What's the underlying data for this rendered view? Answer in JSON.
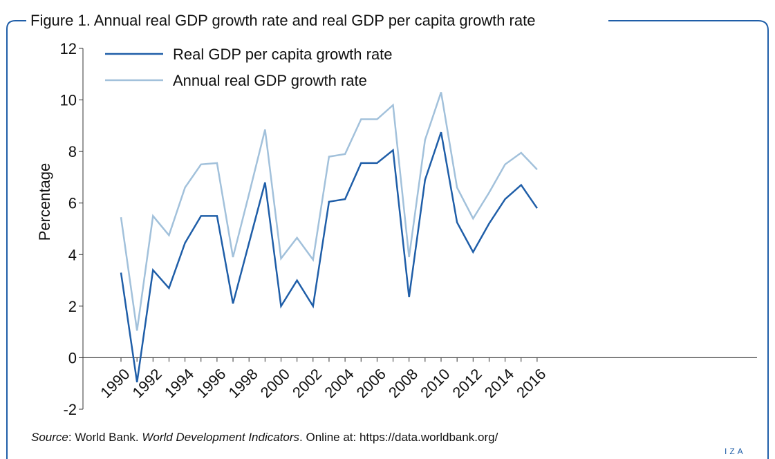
{
  "figure": {
    "title": "Figure 1. Annual real GDP growth rate and real GDP per capita growth rate",
    "source_label": "Source",
    "source_text_1": ": World Bank. ",
    "source_publication": "World Development Indicators",
    "source_text_2": ". Online at: https://data.worldbank.org/",
    "brand": "IZA",
    "frame_color": "#1f5ea8"
  },
  "chart_data": {
    "type": "line",
    "ylabel": "Percentage",
    "xlabel": "",
    "ylim": [
      -2,
      12
    ],
    "yticks": [
      -2,
      0,
      2,
      4,
      6,
      8,
      10,
      12
    ],
    "xticks": [
      "1990",
      "1992",
      "1994",
      "1996",
      "1998",
      "2000",
      "2002",
      "2004",
      "2006",
      "2008",
      "2010",
      "2012",
      "2014",
      "2016"
    ],
    "x": [
      1990,
      1991,
      1992,
      1993,
      1994,
      1995,
      1996,
      1997,
      1998,
      1999,
      2000,
      2001,
      2002,
      2003,
      2004,
      2005,
      2006,
      2007,
      2008,
      2009,
      2010,
      2011,
      2012,
      2013,
      2014,
      2015,
      2016
    ],
    "legend_position": "top-left",
    "grid": false,
    "series": [
      {
        "name": "Real GDP per capita growth rate",
        "color": "#1f5ea8",
        "values": [
          3.3,
          -0.95,
          3.4,
          2.7,
          4.45,
          5.5,
          5.5,
          2.1,
          4.45,
          6.8,
          2.0,
          3.0,
          2.0,
          6.05,
          6.15,
          7.55,
          7.55,
          8.05,
          2.35,
          6.9,
          8.75,
          5.25,
          4.1,
          5.2,
          6.15,
          6.7,
          5.8
        ]
      },
      {
        "name": "Annual real GDP growth rate",
        "color": "#a2c1db",
        "values": [
          5.45,
          1.05,
          5.5,
          4.75,
          6.6,
          7.5,
          7.55,
          3.9,
          6.35,
          8.85,
          3.85,
          4.65,
          3.8,
          7.8,
          7.9,
          9.25,
          9.25,
          9.8,
          3.9,
          8.45,
          10.3,
          6.6,
          5.4,
          6.4,
          7.5,
          7.95,
          7.3
        ]
      }
    ]
  }
}
